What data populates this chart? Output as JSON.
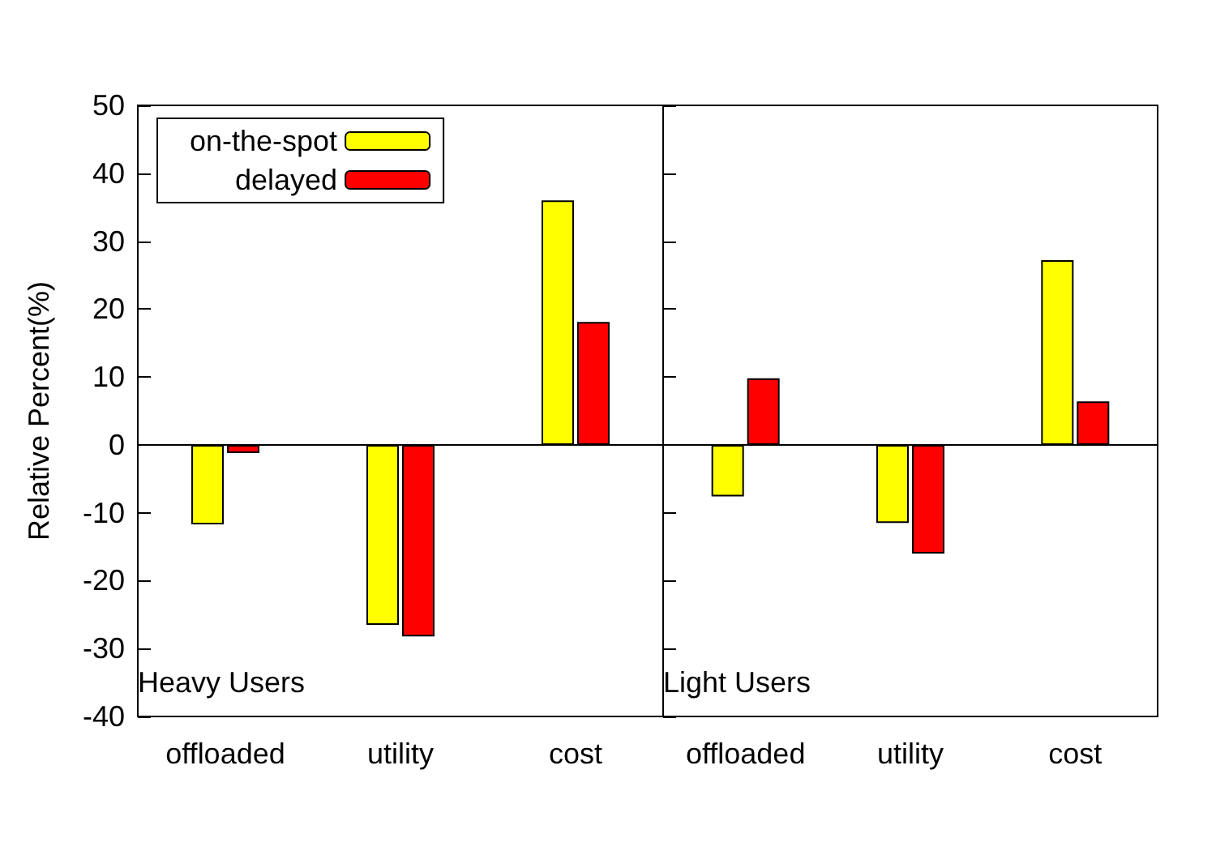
{
  "chart_data": [
    {
      "type": "bar",
      "categories": [
        "offloaded",
        "utility",
        "cost"
      ],
      "ylabel": "Relative Percent(%)",
      "ylim": [
        -40,
        50
      ],
      "yticks": [
        -40,
        -30,
        -20,
        -10,
        0,
        10,
        20,
        30,
        40,
        50
      ],
      "legend": "top left",
      "annotations": [
        "Heavy Users"
      ],
      "ref_lines": [
        {
          "axis": "y",
          "value": 0,
          "color": "#000000"
        }
      ],
      "series": [
        {
          "name": "on-the-spot",
          "color": "#ffff00",
          "values": [
            -11.7,
            -26.5,
            36
          ]
        },
        {
          "name": "delayed",
          "color": "#ff0000",
          "values": [
            -1.2,
            -28.2,
            18.1
          ]
        }
      ]
    },
    {
      "type": "bar",
      "categories": [
        "offloaded",
        "utility",
        "cost"
      ],
      "ylim": [
        -40,
        50
      ],
      "yticks": [
        -40,
        -30,
        -20,
        -10,
        0,
        10,
        20,
        30,
        40,
        50
      ],
      "tick_labels": "x",
      "annotations": [
        "Light Users"
      ],
      "ref_lines": [
        {
          "axis": "y",
          "value": 0,
          "color": "#000000"
        }
      ],
      "series": [
        {
          "color": "#ffff00",
          "values": [
            -7.6,
            -11.5,
            27.2
          ]
        },
        {
          "color": "#ff0000",
          "values": [
            9.8,
            -16,
            6.4
          ]
        }
      ]
    }
  ]
}
